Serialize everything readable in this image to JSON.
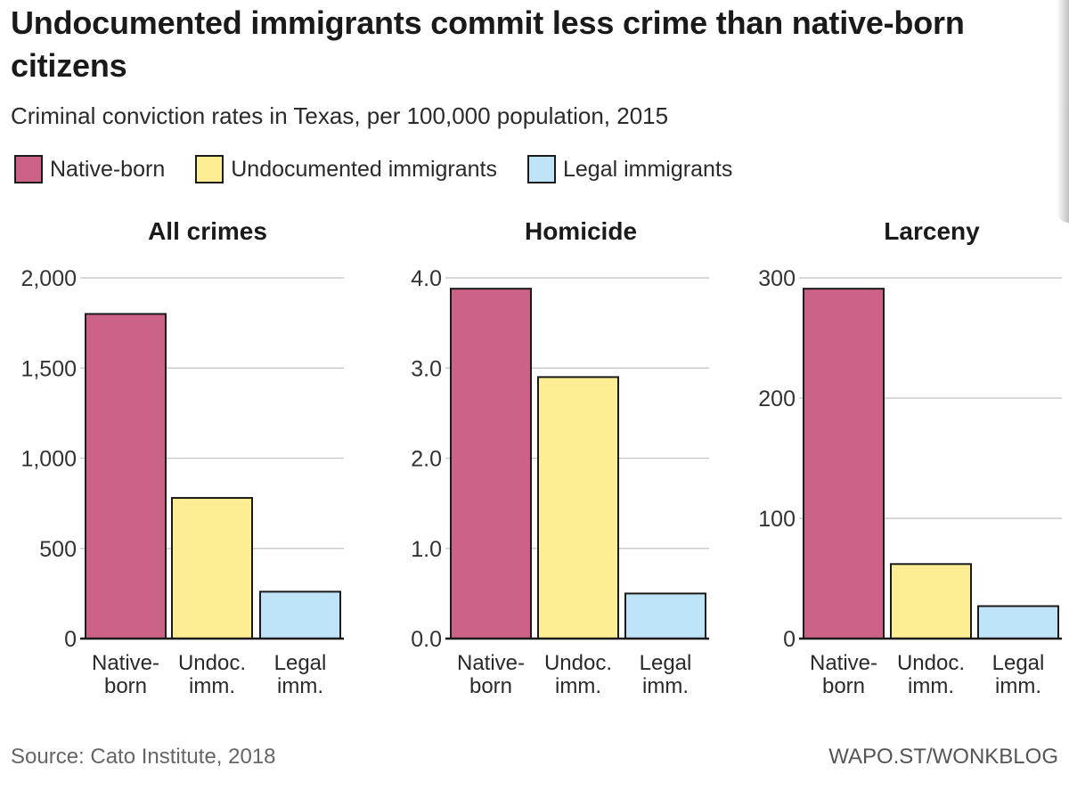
{
  "title": "Undocumented immigrants commit less crime than native-born citizens",
  "subtitle": "Criminal conviction rates in Texas, per 100,000 population, 2015",
  "legend": {
    "items": [
      {
        "label": "Native-born",
        "color": "#cc6288"
      },
      {
        "label": "Undocumented immigrants",
        "color": "#fdee93"
      },
      {
        "label": "Legal immigrants",
        "color": "#bfe4f8"
      }
    ]
  },
  "footer": {
    "source": "Source: Cato Institute, 2018",
    "credit": "WAPO.ST/WONKBLOG"
  },
  "colors": {
    "native": "#cc6288",
    "undocumented": "#fdee93",
    "legal": "#bfe4f8",
    "grid": "#cccccc",
    "outline": "#1a1a1a"
  },
  "chart_data": [
    {
      "type": "bar",
      "title": "All crimes",
      "categories": [
        [
          "Native-",
          "born"
        ],
        [
          "Undoc.",
          "imm."
        ],
        [
          "Legal",
          "imm."
        ]
      ],
      "values": [
        1800,
        780,
        260
      ],
      "ylim": [
        0,
        2000
      ],
      "yticks": [
        0,
        500,
        1000,
        1500,
        2000
      ],
      "ytick_labels": [
        "0",
        "500",
        "1,000",
        "1,500",
        "2,000"
      ],
      "xlabel": "",
      "ylabel": "",
      "grid": true
    },
    {
      "type": "bar",
      "title": "Homicide",
      "categories": [
        [
          "Native-",
          "born"
        ],
        [
          "Undoc.",
          "imm."
        ],
        [
          "Legal",
          "imm."
        ]
      ],
      "values": [
        3.88,
        2.9,
        0.5
      ],
      "ylim": [
        0,
        4.0
      ],
      "yticks": [
        0,
        1,
        2,
        3,
        4
      ],
      "ytick_labels": [
        "0.0",
        "1.0",
        "2.0",
        "3.0",
        "4.0"
      ],
      "xlabel": "",
      "ylabel": "",
      "grid": true
    },
    {
      "type": "bar",
      "title": "Larceny",
      "categories": [
        [
          "Native-",
          "born"
        ],
        [
          "Undoc.",
          "imm."
        ],
        [
          "Legal",
          "imm."
        ]
      ],
      "values": [
        291,
        62,
        27
      ],
      "ylim": [
        0,
        300
      ],
      "yticks": [
        0,
        100,
        200,
        300
      ],
      "ytick_labels": [
        "0",
        "100",
        "200",
        "300"
      ],
      "xlabel": "",
      "ylabel": "",
      "grid": true
    }
  ]
}
